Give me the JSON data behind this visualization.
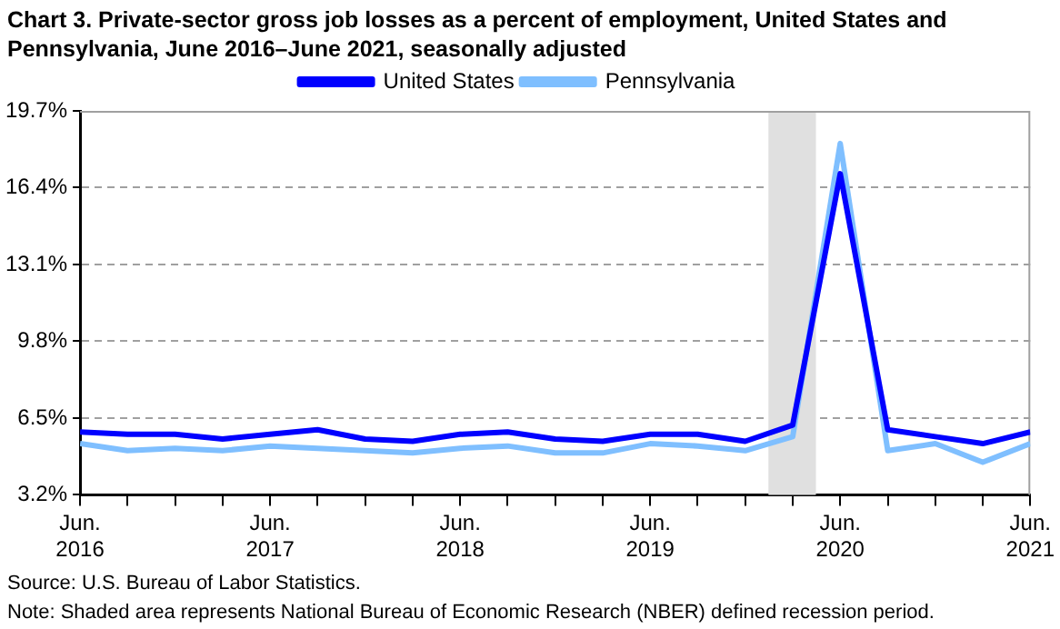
{
  "chart_data": {
    "type": "line",
    "title": "Chart 3. Private-sector gross job losses as a percent of employment, United States and Pennsylvania, June 2016–June 2021, seasonally adjusted",
    "x": [
      "2016-06",
      "2016-09",
      "2016-12",
      "2017-03",
      "2017-06",
      "2017-09",
      "2017-12",
      "2018-03",
      "2018-06",
      "2018-09",
      "2018-12",
      "2019-03",
      "2019-06",
      "2019-09",
      "2019-12",
      "2020-03",
      "2020-06",
      "2020-09",
      "2020-12",
      "2021-03",
      "2021-06"
    ],
    "series": [
      {
        "name": "United States",
        "color": "#0000ff",
        "values": [
          5.9,
          5.8,
          5.8,
          5.6,
          5.8,
          6.0,
          5.6,
          5.5,
          5.8,
          5.9,
          5.6,
          5.5,
          5.8,
          5.8,
          5.5,
          6.2,
          17.0,
          6.0,
          5.7,
          5.4,
          5.9
        ]
      },
      {
        "name": "Pennsylvania",
        "color": "#7fbfff",
        "values": [
          5.4,
          5.1,
          5.2,
          5.1,
          5.3,
          5.2,
          5.1,
          5.0,
          5.2,
          5.3,
          5.0,
          5.0,
          5.4,
          5.3,
          5.1,
          5.7,
          18.3,
          5.1,
          5.4,
          4.6,
          5.4
        ]
      }
    ],
    "xlim": [
      "2016-06",
      "2021-06"
    ],
    "xticks": [
      {
        "value": "2016-06",
        "label": "Jun.\n2016"
      },
      {
        "value": "2016-09",
        "label": null
      },
      {
        "value": "2016-12",
        "label": null
      },
      {
        "value": "2017-03",
        "label": null
      },
      {
        "value": "2017-06",
        "label": "Jun.\n2017"
      },
      {
        "value": "2017-09",
        "label": null
      },
      {
        "value": "2017-12",
        "label": null
      },
      {
        "value": "2018-03",
        "label": null
      },
      {
        "value": "2018-06",
        "label": "Jun.\n2018"
      },
      {
        "value": "2018-09",
        "label": null
      },
      {
        "value": "2018-12",
        "label": null
      },
      {
        "value": "2019-03",
        "label": null
      },
      {
        "value": "2019-06",
        "label": "Jun.\n2019"
      },
      {
        "value": "2019-09",
        "label": null
      },
      {
        "value": "2019-12",
        "label": null
      },
      {
        "value": "2020-03",
        "label": null
      },
      {
        "value": "2020-06",
        "label": "Jun.\n2020"
      },
      {
        "value": "2020-09",
        "label": null
      },
      {
        "value": "2020-12",
        "label": null
      },
      {
        "value": "2021-03",
        "label": null
      },
      {
        "value": "2021-06",
        "label": "Jun.\n2021"
      }
    ],
    "ylim": [
      3.2,
      19.7
    ],
    "yticks": [
      {
        "value": 3.2,
        "label": "3.2%"
      },
      {
        "value": 6.5,
        "label": "6.5%"
      },
      {
        "value": 9.8,
        "label": "9.8%"
      },
      {
        "value": 13.1,
        "label": "13.1%"
      },
      {
        "value": 16.4,
        "label": "16.4%"
      },
      {
        "value": 19.7,
        "label": "19.7%"
      }
    ],
    "bands": [
      {
        "axis": "x",
        "from": "2020-01-15",
        "to": "2020-04-15",
        "color": "#e0e0e0"
      }
    ],
    "grid": "y",
    "legend": "top",
    "line_style": "solid",
    "marker": "none",
    "annotations": [
      "Source: U.S. Bureau of Labor Statistics.",
      "Note: Shaded area represents National Bureau of Economic Research (NBER) defined recession period."
    ]
  }
}
